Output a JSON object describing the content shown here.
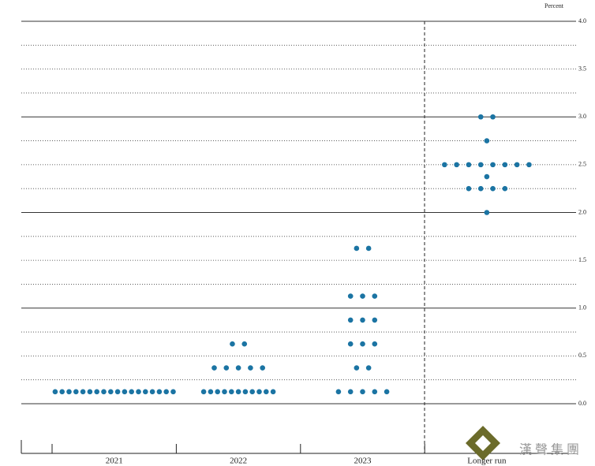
{
  "chart_data": {
    "type": "dot",
    "y_axis_label": "Percent",
    "watermark": "漢 聲 集 團",
    "categories": [
      "2021",
      "2022",
      "2023",
      "Longer run"
    ],
    "color": "#1b74a3",
    "groups": [
      [
        {
          "value": 0.125,
          "count": 18
        }
      ],
      [
        {
          "value": 0.125,
          "count": 11
        },
        {
          "value": 0.375,
          "count": 5
        },
        {
          "value": 0.625,
          "count": 2
        }
      ],
      [
        {
          "value": 0.125,
          "count": 5
        },
        {
          "value": 0.375,
          "count": 2
        },
        {
          "value": 0.625,
          "count": 3
        },
        {
          "value": 0.875,
          "count": 3
        },
        {
          "value": 1.125,
          "count": 3
        },
        {
          "value": 1.625,
          "count": 2
        }
      ],
      [
        {
          "value": 2.0,
          "count": 1
        },
        {
          "value": 2.25,
          "count": 4
        },
        {
          "value": 2.375,
          "count": 1
        },
        {
          "value": 2.5,
          "count": 8
        },
        {
          "value": 2.75,
          "count": 1
        },
        {
          "value": 3.0,
          "count": 2
        }
      ]
    ],
    "ylim": [
      0,
      4
    ],
    "yticks": [
      {
        "value": 0,
        "label": "0.0"
      },
      0.5,
      {
        "value": 1,
        "label": "1.0"
      },
      1.5,
      {
        "value": 2,
        "label": "2.0"
      },
      2.5,
      {
        "value": 3,
        "label": "3.0"
      },
      3.5,
      {
        "value": 4,
        "label": "4.0"
      }
    ],
    "yminor_ticks": [
      0.25,
      0.75,
      1.25,
      1.75,
      2.25,
      2.75,
      3.25,
      3.75
    ],
    "grid": true
  }
}
